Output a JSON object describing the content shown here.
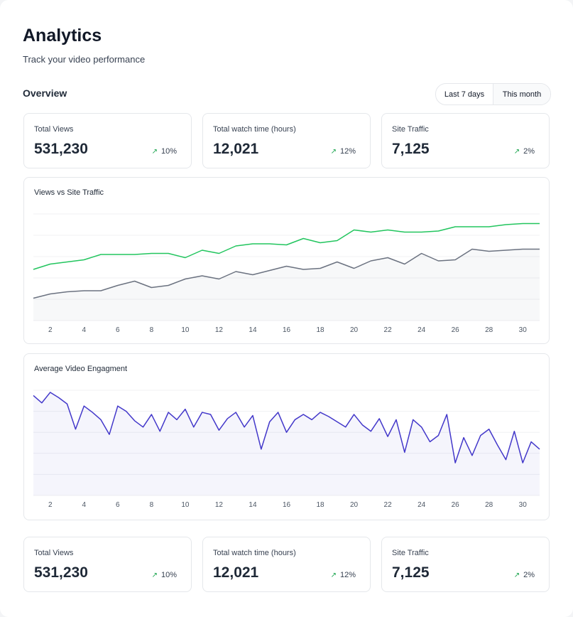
{
  "header": {
    "title": "Analytics",
    "subtitle": "Track your video performance"
  },
  "overview": {
    "title": "Overview",
    "tabs": [
      "Last 7 days",
      "This month"
    ]
  },
  "stats_top": [
    {
      "label": "Total Views",
      "value": "531,230",
      "change": "10%"
    },
    {
      "label": "Total watch time (hours)",
      "value": "12,021",
      "change": "12%"
    },
    {
      "label": "Site Traffic",
      "value": "7,125",
      "change": "2%"
    }
  ],
  "chart_data": [
    {
      "type": "line",
      "title": "Views vs Site Traffic",
      "xlim": [
        1,
        31
      ],
      "xticks": [
        2,
        4,
        6,
        8,
        10,
        12,
        14,
        16,
        18,
        20,
        22,
        24,
        26,
        28,
        30
      ],
      "ylim": [
        0,
        100
      ],
      "x": [
        1,
        2,
        3,
        4,
        5,
        6,
        7,
        8,
        9,
        10,
        11,
        12,
        13,
        14,
        15,
        16,
        17,
        18,
        19,
        20,
        21,
        22,
        23,
        24,
        25,
        26,
        27,
        28,
        29,
        30,
        31
      ],
      "series": [
        {
          "color": "#22c55e",
          "values": [
            48,
            53,
            55,
            57,
            62,
            62,
            62,
            63,
            63,
            59,
            66,
            63,
            70,
            72,
            72,
            71,
            77,
            73,
            75,
            85,
            83,
            85,
            83,
            83,
            84,
            88,
            88,
            88,
            90,
            91,
            91
          ]
        },
        {
          "color": "#6b7280",
          "values": [
            21,
            25,
            27,
            28,
            28,
            33,
            37,
            31,
            33,
            39,
            42,
            39,
            46,
            43,
            47,
            51,
            48,
            49,
            55,
            49,
            56,
            59,
            53,
            63,
            56,
            57,
            67,
            65,
            66,
            67,
            67
          ]
        }
      ]
    },
    {
      "type": "line",
      "title": "Average Video Engagment",
      "xlim": [
        1,
        31
      ],
      "xticks": [
        2,
        4,
        6,
        8,
        10,
        12,
        14,
        16,
        18,
        20,
        22,
        24,
        26,
        28,
        30
      ],
      "ylim": [
        0,
        100
      ],
      "x": [
        1,
        1.5,
        2,
        2.5,
        3,
        3.5,
        4,
        4.5,
        5,
        5.5,
        6,
        6.5,
        7,
        7.5,
        8,
        8.5,
        9,
        9.5,
        10,
        10.5,
        11,
        11.5,
        12,
        12.5,
        13,
        13.5,
        14,
        14.5,
        15,
        15.5,
        16,
        16.5,
        17,
        17.5,
        18,
        18.5,
        19,
        19.5,
        20,
        20.5,
        21,
        21.5,
        22,
        22.5,
        23,
        23.5,
        24,
        24.5,
        25,
        25.5,
        26,
        26.5,
        27,
        27.5,
        28,
        28.5,
        29,
        29.5,
        30,
        30.5,
        31
      ],
      "series": [
        {
          "color": "#4338ca",
          "values": [
            95,
            88,
            98,
            93,
            87,
            63,
            85,
            79,
            72,
            58,
            85,
            80,
            71,
            65,
            77,
            61,
            79,
            72,
            82,
            65,
            79,
            77,
            62,
            73,
            79,
            65,
            76,
            44,
            70,
            79,
            60,
            72,
            77,
            72,
            79,
            75,
            70,
            65,
            77,
            67,
            61,
            73,
            56,
            72,
            41,
            72,
            65,
            51,
            57,
            77,
            31,
            55,
            38,
            57,
            63,
            48,
            34,
            61,
            31,
            51,
            44
          ]
        }
      ]
    }
  ],
  "stats_bottom": [
    {
      "label": "Total Views",
      "value": "531,230",
      "change": "10%"
    },
    {
      "label": "Total watch time (hours)",
      "value": "12,021",
      "change": "12%"
    },
    {
      "label": "Site Traffic",
      "value": "7,125",
      "change": "2%"
    }
  ]
}
